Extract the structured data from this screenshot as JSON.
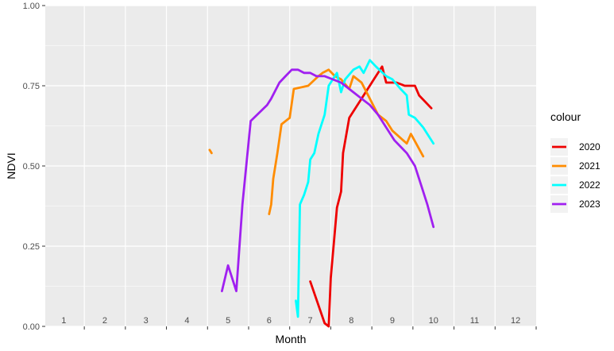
{
  "chart_data": {
    "type": "line",
    "xlabel": "Month",
    "ylabel": "NDVI",
    "xlim": [
      0.55,
      12.5
    ],
    "ylim": [
      0,
      1
    ],
    "grid": true,
    "legend_position": "right",
    "legend_title": "colour",
    "x_tick_labels": [
      "1",
      "2",
      "3",
      "4",
      "5",
      "6",
      "7",
      "8",
      "9",
      "10",
      "11",
      "12"
    ],
    "x_tick_labels_inside_panel": true,
    "y_ticks": [
      {
        "value": 0.0,
        "label": "0.00"
      },
      {
        "value": 0.25,
        "label": "0.25"
      },
      {
        "value": 0.5,
        "label": "0.50"
      },
      {
        "value": 0.75,
        "label": "0.75"
      },
      {
        "value": 1.0,
        "label": "1.00"
      }
    ],
    "series": [
      {
        "name": "2020",
        "color": "#ee0000",
        "points": [
          [
            7.0,
            0.14
          ],
          [
            7.35,
            0.01
          ],
          [
            7.45,
            0.0
          ],
          [
            7.5,
            0.15
          ],
          [
            7.65,
            0.37
          ],
          [
            7.75,
            0.42
          ],
          [
            7.8,
            0.54
          ],
          [
            7.95,
            0.65
          ],
          [
            8.05,
            0.67
          ],
          [
            8.3,
            0.72
          ],
          [
            8.55,
            0.77
          ],
          [
            8.75,
            0.81
          ],
          [
            8.85,
            0.76
          ],
          [
            9.1,
            0.76
          ],
          [
            9.3,
            0.75
          ],
          [
            9.55,
            0.75
          ],
          [
            9.65,
            0.72
          ],
          [
            9.95,
            0.68
          ]
        ]
      },
      {
        "name": "2021",
        "color": "#ff8c00",
        "points": [
          [
            4.55,
            0.55
          ],
          [
            4.6,
            0.54
          ],
          null,
          [
            6.0,
            0.35
          ],
          [
            6.05,
            0.38
          ],
          [
            6.1,
            0.46
          ],
          [
            6.2,
            0.54
          ],
          [
            6.3,
            0.63
          ],
          [
            6.5,
            0.65
          ],
          [
            6.6,
            0.74
          ],
          [
            6.95,
            0.75
          ],
          [
            7.2,
            0.78
          ],
          [
            7.3,
            0.79
          ],
          [
            7.45,
            0.8
          ],
          [
            7.6,
            0.78
          ],
          [
            7.75,
            0.77
          ],
          [
            7.95,
            0.74
          ],
          [
            8.05,
            0.78
          ],
          [
            8.25,
            0.76
          ],
          [
            8.45,
            0.71
          ],
          [
            8.65,
            0.66
          ],
          [
            8.85,
            0.64
          ],
          [
            9.0,
            0.61
          ],
          [
            9.35,
            0.57
          ],
          [
            9.45,
            0.6
          ],
          [
            9.75,
            0.53
          ]
        ]
      },
      {
        "name": "2022",
        "color": "#00ffff",
        "points": [
          [
            6.65,
            0.08
          ],
          [
            6.7,
            0.03
          ],
          [
            6.75,
            0.38
          ],
          [
            6.85,
            0.41
          ],
          [
            6.95,
            0.45
          ],
          [
            7.0,
            0.52
          ],
          [
            7.1,
            0.54
          ],
          [
            7.2,
            0.6
          ],
          [
            7.35,
            0.66
          ],
          [
            7.45,
            0.75
          ],
          [
            7.55,
            0.77
          ],
          [
            7.65,
            0.79
          ],
          [
            7.75,
            0.73
          ],
          [
            7.85,
            0.77
          ],
          [
            8.05,
            0.8
          ],
          [
            8.2,
            0.81
          ],
          [
            8.3,
            0.79
          ],
          [
            8.45,
            0.83
          ],
          [
            8.6,
            0.81
          ],
          [
            8.85,
            0.78
          ],
          [
            9.0,
            0.77
          ],
          [
            9.2,
            0.74
          ],
          [
            9.35,
            0.72
          ],
          [
            9.4,
            0.66
          ],
          [
            9.55,
            0.65
          ],
          [
            9.75,
            0.62
          ],
          [
            10.0,
            0.57
          ]
        ]
      },
      {
        "name": "2023",
        "color": "#a020f0",
        "points": [
          [
            4.85,
            0.11
          ],
          [
            5.0,
            0.19
          ],
          [
            5.2,
            0.11
          ],
          [
            5.35,
            0.38
          ],
          [
            5.55,
            0.64
          ],
          [
            5.95,
            0.69
          ],
          [
            6.05,
            0.71
          ],
          [
            6.25,
            0.76
          ],
          [
            6.4,
            0.78
          ],
          [
            6.55,
            0.8
          ],
          [
            6.7,
            0.8
          ],
          [
            6.85,
            0.79
          ],
          [
            7.0,
            0.79
          ],
          [
            7.15,
            0.78
          ],
          [
            7.35,
            0.78
          ],
          [
            7.55,
            0.77
          ],
          [
            7.75,
            0.76
          ],
          [
            7.85,
            0.75
          ],
          [
            8.05,
            0.73
          ],
          [
            8.25,
            0.71
          ],
          [
            8.45,
            0.69
          ],
          [
            8.65,
            0.66
          ],
          [
            8.85,
            0.62
          ],
          [
            9.05,
            0.58
          ],
          [
            9.35,
            0.54
          ],
          [
            9.55,
            0.5
          ],
          [
            9.7,
            0.44
          ],
          [
            9.85,
            0.38
          ],
          [
            10.0,
            0.31
          ]
        ]
      }
    ]
  }
}
